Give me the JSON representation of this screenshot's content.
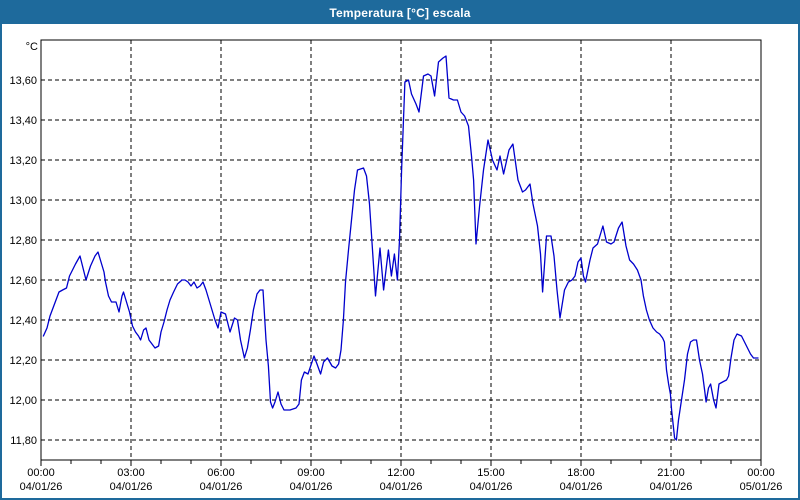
{
  "window": {
    "title": "Temperatura [°C] escala"
  },
  "colors": {
    "title_bar": "#1e6a9c",
    "title_text": "#ffffff",
    "window_border": "#1e6a9c",
    "background": "#ffffff",
    "plot_border": "#000000",
    "grid": "#000000",
    "axis_text": "#000000",
    "line": "#0000cd"
  },
  "chart_data": {
    "type": "line",
    "title": "Temperatura [°C] escala",
    "y_unit_label": "°C",
    "xlabel": "",
    "ylabel": "",
    "ylim": [
      11.7,
      13.8
    ],
    "x_range": [
      0,
      24
    ],
    "x_minor_step_hours": 1,
    "grid": "dashed",
    "legend_position": "none",
    "yticks": [
      {
        "value": 11.8,
        "label": "11,80"
      },
      {
        "value": 12.0,
        "label": "12,00"
      },
      {
        "value": 12.2,
        "label": "12,20"
      },
      {
        "value": 12.4,
        "label": "12,40"
      },
      {
        "value": 12.6,
        "label": "12,60"
      },
      {
        "value": 12.8,
        "label": "12,80"
      },
      {
        "value": 13.0,
        "label": "13,00"
      },
      {
        "value": 13.2,
        "label": "13,20"
      },
      {
        "value": 13.4,
        "label": "13,40"
      },
      {
        "value": 13.6,
        "label": "13,60"
      }
    ],
    "x_major_ticks": [
      {
        "hour": 0,
        "time": "00:00",
        "date": "04/01/26"
      },
      {
        "hour": 3,
        "time": "03:00",
        "date": "04/01/26"
      },
      {
        "hour": 6,
        "time": "06:00",
        "date": "04/01/26"
      },
      {
        "hour": 9,
        "time": "09:00",
        "date": "04/01/26"
      },
      {
        "hour": 12,
        "time": "12:00",
        "date": "04/01/26"
      },
      {
        "hour": 15,
        "time": "15:00",
        "date": "04/01/26"
      },
      {
        "hour": 18,
        "time": "18:00",
        "date": "04/01/26"
      },
      {
        "hour": 21,
        "time": "21:00",
        "date": "04/01/26"
      },
      {
        "hour": 24,
        "time": "00:00",
        "date": "05/01/26"
      }
    ],
    "series": [
      {
        "name": "Temperatura [°C]",
        "color": "#0000cd",
        "points": [
          [
            0.08,
            12.32
          ],
          [
            0.2,
            12.36
          ],
          [
            0.3,
            12.42
          ],
          [
            0.45,
            12.48
          ],
          [
            0.6,
            12.54
          ],
          [
            0.72,
            12.55
          ],
          [
            0.85,
            12.56
          ],
          [
            0.95,
            12.62
          ],
          [
            1.05,
            12.65
          ],
          [
            1.15,
            12.68
          ],
          [
            1.3,
            12.72
          ],
          [
            1.4,
            12.66
          ],
          [
            1.5,
            12.6
          ],
          [
            1.65,
            12.67
          ],
          [
            1.8,
            12.72
          ],
          [
            1.9,
            12.74
          ],
          [
            2.0,
            12.69
          ],
          [
            2.1,
            12.64
          ],
          [
            2.15,
            12.59
          ],
          [
            2.25,
            12.52
          ],
          [
            2.35,
            12.49
          ],
          [
            2.5,
            12.49
          ],
          [
            2.6,
            12.44
          ],
          [
            2.7,
            12.52
          ],
          [
            2.75,
            12.54
          ],
          [
            2.85,
            12.49
          ],
          [
            2.95,
            12.44
          ],
          [
            3.05,
            12.37
          ],
          [
            3.15,
            12.34
          ],
          [
            3.25,
            12.32
          ],
          [
            3.32,
            12.3
          ],
          [
            3.42,
            12.35
          ],
          [
            3.5,
            12.36
          ],
          [
            3.6,
            12.3
          ],
          [
            3.7,
            12.28
          ],
          [
            3.8,
            12.26
          ],
          [
            3.92,
            12.27
          ],
          [
            4.0,
            12.34
          ],
          [
            4.1,
            12.39
          ],
          [
            4.2,
            12.45
          ],
          [
            4.3,
            12.5
          ],
          [
            4.42,
            12.54
          ],
          [
            4.55,
            12.58
          ],
          [
            4.7,
            12.6
          ],
          [
            4.8,
            12.6
          ],
          [
            4.9,
            12.59
          ],
          [
            5.0,
            12.57
          ],
          [
            5.1,
            12.59
          ],
          [
            5.2,
            12.56
          ],
          [
            5.3,
            12.57
          ],
          [
            5.4,
            12.59
          ],
          [
            5.5,
            12.55
          ],
          [
            5.6,
            12.5
          ],
          [
            5.7,
            12.45
          ],
          [
            5.8,
            12.4
          ],
          [
            5.9,
            12.36
          ],
          [
            6.0,
            12.44
          ],
          [
            6.15,
            12.43
          ],
          [
            6.3,
            12.34
          ],
          [
            6.45,
            12.41
          ],
          [
            6.55,
            12.4
          ],
          [
            6.65,
            12.3
          ],
          [
            6.78,
            12.21
          ],
          [
            6.88,
            12.26
          ],
          [
            6.98,
            12.35
          ],
          [
            7.08,
            12.45
          ],
          [
            7.2,
            12.53
          ],
          [
            7.3,
            12.55
          ],
          [
            7.4,
            12.55
          ],
          [
            7.5,
            12.3
          ],
          [
            7.58,
            12.17
          ],
          [
            7.65,
            11.99
          ],
          [
            7.72,
            11.96
          ],
          [
            7.8,
            11.99
          ],
          [
            7.9,
            12.04
          ],
          [
            8.0,
            11.98
          ],
          [
            8.1,
            11.95
          ],
          [
            8.3,
            11.95
          ],
          [
            8.5,
            11.96
          ],
          [
            8.6,
            11.98
          ],
          [
            8.68,
            12.1
          ],
          [
            8.78,
            12.14
          ],
          [
            8.9,
            12.13
          ],
          [
            9.1,
            12.22
          ],
          [
            9.2,
            12.18
          ],
          [
            9.32,
            12.13
          ],
          [
            9.42,
            12.19
          ],
          [
            9.55,
            12.21
          ],
          [
            9.7,
            12.17
          ],
          [
            9.82,
            12.16
          ],
          [
            9.92,
            12.18
          ],
          [
            10.0,
            12.25
          ],
          [
            10.08,
            12.4
          ],
          [
            10.15,
            12.59
          ],
          [
            10.25,
            12.75
          ],
          [
            10.35,
            12.9
          ],
          [
            10.45,
            13.05
          ],
          [
            10.55,
            13.15
          ],
          [
            10.75,
            13.16
          ],
          [
            10.85,
            13.12
          ],
          [
            10.95,
            12.98
          ],
          [
            11.05,
            12.75
          ],
          [
            11.15,
            12.52
          ],
          [
            11.3,
            12.76
          ],
          [
            11.42,
            12.55
          ],
          [
            11.58,
            12.75
          ],
          [
            11.68,
            12.62
          ],
          [
            11.78,
            12.73
          ],
          [
            11.88,
            12.6
          ],
          [
            11.95,
            12.8
          ],
          [
            12.02,
            13.15
          ],
          [
            12.13,
            13.59
          ],
          [
            12.25,
            13.6
          ],
          [
            12.35,
            13.53
          ],
          [
            12.5,
            13.48
          ],
          [
            12.6,
            13.44
          ],
          [
            12.75,
            13.62
          ],
          [
            12.9,
            13.63
          ],
          [
            13.0,
            13.62
          ],
          [
            13.12,
            13.52
          ],
          [
            13.25,
            13.69
          ],
          [
            13.4,
            13.71
          ],
          [
            13.5,
            13.72
          ],
          [
            13.6,
            13.51
          ],
          [
            13.75,
            13.5
          ],
          [
            13.88,
            13.5
          ],
          [
            14.0,
            13.44
          ],
          [
            14.12,
            13.42
          ],
          [
            14.25,
            13.37
          ],
          [
            14.35,
            13.22
          ],
          [
            14.42,
            13.1
          ],
          [
            14.5,
            12.78
          ],
          [
            14.62,
            12.97
          ],
          [
            14.75,
            13.15
          ],
          [
            14.9,
            13.3
          ],
          [
            15.05,
            13.2
          ],
          [
            15.2,
            13.15
          ],
          [
            15.3,
            13.22
          ],
          [
            15.42,
            13.13
          ],
          [
            15.6,
            13.25
          ],
          [
            15.73,
            13.28
          ],
          [
            15.9,
            13.1
          ],
          [
            16.05,
            13.04
          ],
          [
            16.15,
            13.05
          ],
          [
            16.3,
            13.08
          ],
          [
            16.4,
            12.98
          ],
          [
            16.55,
            12.87
          ],
          [
            16.65,
            12.73
          ],
          [
            16.72,
            12.54
          ],
          [
            16.85,
            12.82
          ],
          [
            17.0,
            12.82
          ],
          [
            17.1,
            12.72
          ],
          [
            17.2,
            12.55
          ],
          [
            17.3,
            12.41
          ],
          [
            17.45,
            12.55
          ],
          [
            17.58,
            12.59
          ],
          [
            17.7,
            12.6
          ],
          [
            17.8,
            12.62
          ],
          [
            17.9,
            12.69
          ],
          [
            18.0,
            12.71
          ],
          [
            18.08,
            12.62
          ],
          [
            18.15,
            12.59
          ],
          [
            18.3,
            12.7
          ],
          [
            18.4,
            12.76
          ],
          [
            18.55,
            12.78
          ],
          [
            18.73,
            12.87
          ],
          [
            18.85,
            12.79
          ],
          [
            19.0,
            12.78
          ],
          [
            19.1,
            12.79
          ],
          [
            19.25,
            12.86
          ],
          [
            19.37,
            12.89
          ],
          [
            19.5,
            12.77
          ],
          [
            19.62,
            12.7
          ],
          [
            19.75,
            12.68
          ],
          [
            19.88,
            12.65
          ],
          [
            20.0,
            12.6
          ],
          [
            20.08,
            12.52
          ],
          [
            20.18,
            12.45
          ],
          [
            20.28,
            12.4
          ],
          [
            20.4,
            12.36
          ],
          [
            20.52,
            12.34
          ],
          [
            20.62,
            12.33
          ],
          [
            20.72,
            12.31
          ],
          [
            20.78,
            12.29
          ],
          [
            20.85,
            12.15
          ],
          [
            20.92,
            12.08
          ],
          [
            20.98,
            12.03
          ],
          [
            21.02,
            11.95
          ],
          [
            21.07,
            11.88
          ],
          [
            21.12,
            11.81
          ],
          [
            21.18,
            11.8
          ],
          [
            21.25,
            11.9
          ],
          [
            21.35,
            12.0
          ],
          [
            21.45,
            12.1
          ],
          [
            21.55,
            12.23
          ],
          [
            21.65,
            12.29
          ],
          [
            21.75,
            12.3
          ],
          [
            21.85,
            12.3
          ],
          [
            21.95,
            12.2
          ],
          [
            22.05,
            12.13
          ],
          [
            22.12,
            12.05
          ],
          [
            22.17,
            11.99
          ],
          [
            22.25,
            12.06
          ],
          [
            22.32,
            12.08
          ],
          [
            22.42,
            12.0
          ],
          [
            22.5,
            11.96
          ],
          [
            22.6,
            12.08
          ],
          [
            22.72,
            12.09
          ],
          [
            22.85,
            12.1
          ],
          [
            22.92,
            12.12
          ],
          [
            23.0,
            12.21
          ],
          [
            23.1,
            12.3
          ],
          [
            23.2,
            12.33
          ],
          [
            23.35,
            12.32
          ],
          [
            23.45,
            12.29
          ],
          [
            23.55,
            12.26
          ],
          [
            23.65,
            12.23
          ],
          [
            23.75,
            12.21
          ],
          [
            23.9,
            12.21
          ]
        ]
      }
    ]
  }
}
